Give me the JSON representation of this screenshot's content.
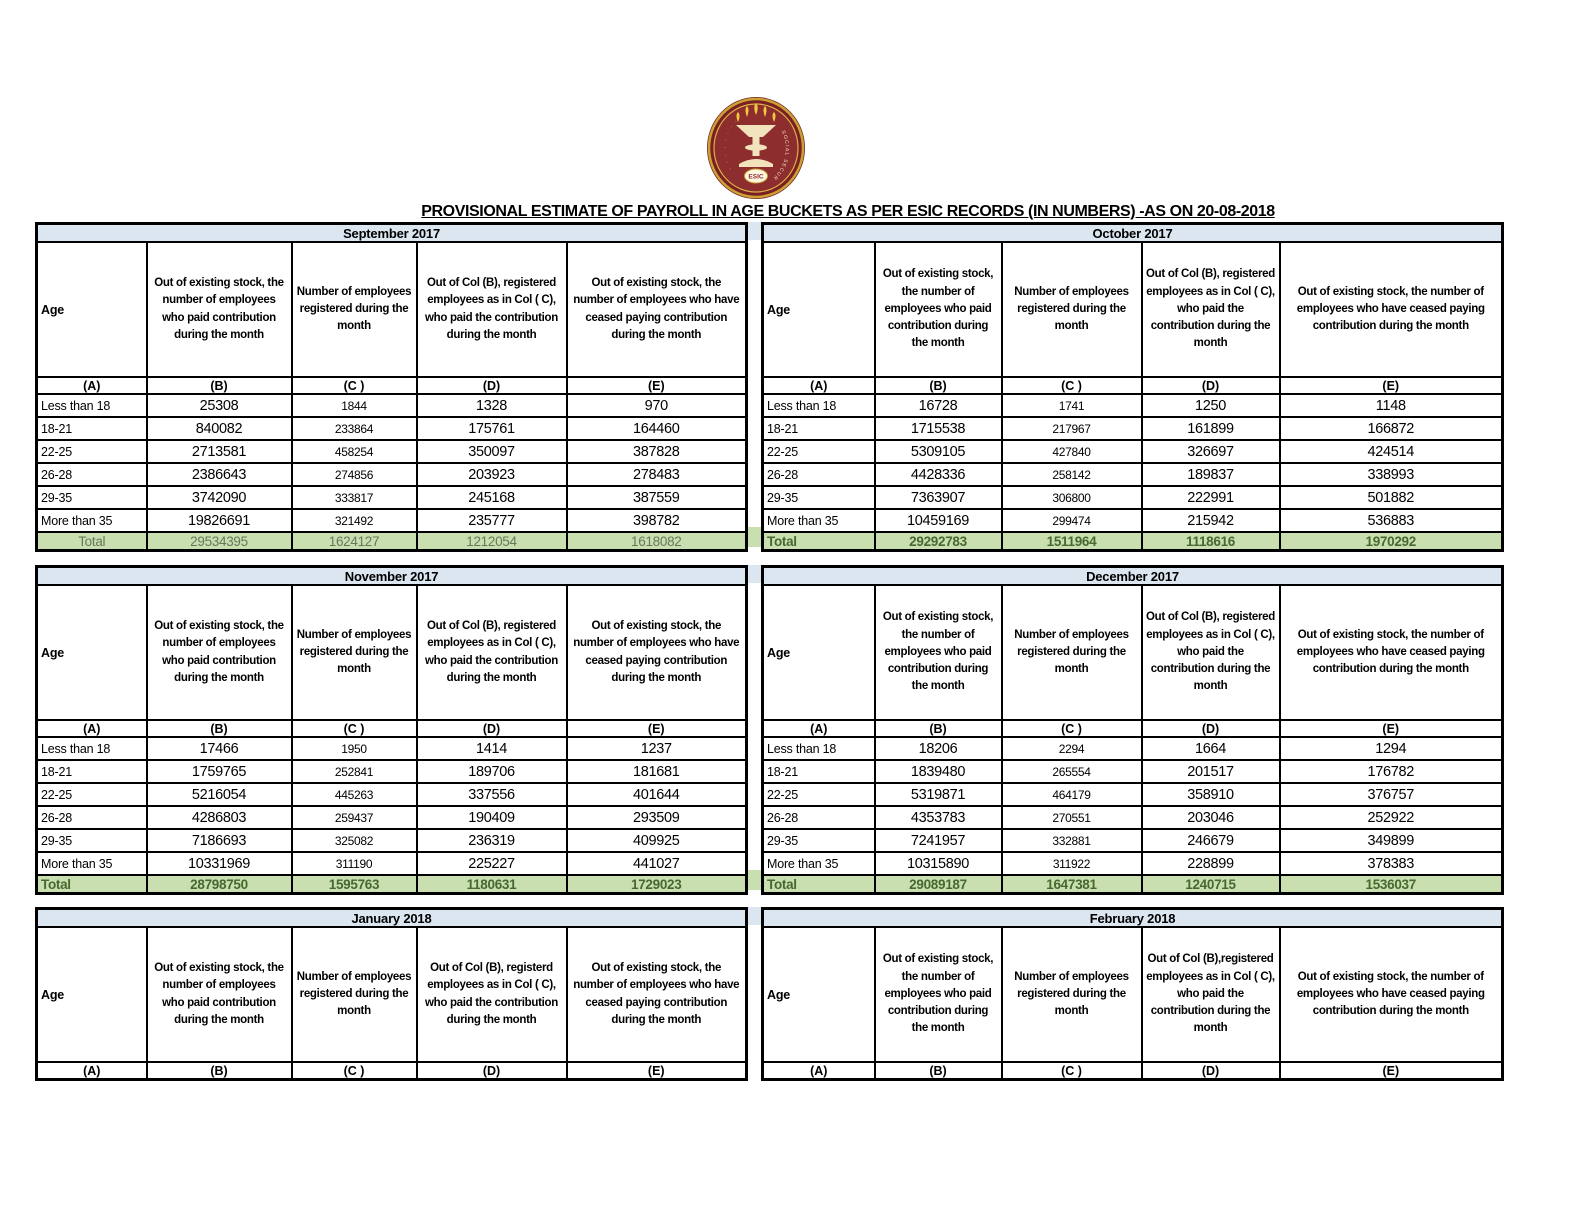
{
  "title": "PROVISIONAL ESTIMATE OF PAYROLL IN AGE BUCKETS AS PER ESIC RECORDS (IN NUMBERS) -AS ON 20-08-2018",
  "logo": {
    "name": "ESIC emblem",
    "center_text": "ESIC",
    "arc_text_right": "SOCIAL SECURITY",
    "colors": {
      "maroon": "#8e2d2e",
      "gold": "#c9a233",
      "cream": "#f2e3bd"
    }
  },
  "common": {
    "age_label": "Age",
    "letters": [
      "(A)",
      "(B)",
      "(C )",
      "(D)",
      "(E)"
    ],
    "total_label": "Total",
    "colors": {
      "month_header_bg": "#dce6f1",
      "total_row_bg": "#c9dfaf",
      "total_text_bold": "#47682e",
      "total_text_plain": "#66785c"
    }
  },
  "tables": [
    {
      "month": "September 2017",
      "headers": [
        "Out of existing stock, the number of employees who paid contribution during the month",
        "Number of employees registered during the month",
        "Out of Col (B), registered employees as in Col ( C), who paid the contribution during the month",
        "Out of existing stock, the number of  employees  who have ceased paying contribution during the month"
      ],
      "rows": [
        [
          "Less than 18",
          "25308",
          "1844",
          "1328",
          "970"
        ],
        [
          "18-21",
          "840082",
          "233864",
          "175761",
          "164460"
        ],
        [
          "22-25",
          "2713581",
          "458254",
          "350097",
          "387828"
        ],
        [
          "26-28",
          "2386643",
          "274856",
          "203923",
          "278483"
        ],
        [
          "29-35",
          "3742090",
          "333817",
          "245168",
          "387559"
        ],
        [
          "More than 35",
          "19826691",
          "321492",
          "235777",
          "398782"
        ]
      ],
      "total": [
        "29534395",
        "1624127",
        "1212054",
        "1618082"
      ],
      "total_align": "center"
    },
    {
      "month": "October 2017",
      "headers": [
        "Out of existing stock, the number of employees who paid contribution during the month",
        "Number of employees registered during the month",
        "Out of Col (B), registered employees as in Col ( C), who paid the contribution during the month",
        "Out of existing stock, the number of  employees  who have ceased paying contribution during the month"
      ],
      "rows": [
        [
          "Less than 18",
          "16728",
          "1741",
          "1250",
          "1148"
        ],
        [
          "18-21",
          "1715538",
          "217967",
          "161899",
          "166872"
        ],
        [
          "22-25",
          "5309105",
          "427840",
          "326697",
          "424514"
        ],
        [
          "26-28",
          "4428336",
          "258142",
          "189837",
          "338993"
        ],
        [
          "29-35",
          "7363907",
          "306800",
          "222991",
          "501882"
        ],
        [
          "More than 35",
          "10459169",
          "299474",
          "215942",
          "536883"
        ]
      ],
      "total": [
        "29292783",
        "1511964",
        "1118616",
        "1970292"
      ],
      "total_align": "left"
    },
    {
      "month": "November 2017",
      "headers": [
        "Out of existing stock, the number of employees who paid contribution during the month",
        "Number of employees registered during the month",
        "Out of Col (B), registered employees as in Col ( C), who paid the contribution during the month",
        "Out of existing stock, the number of  employees  who have ceased paying contribution during the month"
      ],
      "rows": [
        [
          "Less than 18",
          "17466",
          "1950",
          "1414",
          "1237"
        ],
        [
          "18-21",
          "1759765",
          "252841",
          "189706",
          "181681"
        ],
        [
          "22-25",
          "5216054",
          "445263",
          "337556",
          "401644"
        ],
        [
          "26-28",
          "4286803",
          "259437",
          "190409",
          "293509"
        ],
        [
          "29-35",
          "7186693",
          "325082",
          "236319",
          "409925"
        ],
        [
          "More than 35",
          "10331969",
          "311190",
          "225227",
          "441027"
        ]
      ],
      "total": [
        "28798750",
        "1595763",
        "1180631",
        "1729023"
      ],
      "total_align": "left"
    },
    {
      "month": "December 2017",
      "headers": [
        "Out of existing stock, the number of employees who paid contribution during the month",
        "Number of employees registered during the month",
        "Out of Col (B), registered employees as in Col ( C), who paid the contribution during the month",
        "Out of existing stock, the number of  employees  who have ceased paying contribution during the month"
      ],
      "rows": [
        [
          "Less than 18",
          "18206",
          "2294",
          "1664",
          "1294"
        ],
        [
          "18-21",
          "1839480",
          "265554",
          "201517",
          "176782"
        ],
        [
          "22-25",
          "5319871",
          "464179",
          "358910",
          "376757"
        ],
        [
          "26-28",
          "4353783",
          "270551",
          "203046",
          "252922"
        ],
        [
          "29-35",
          "7241957",
          "332881",
          "246679",
          "349899"
        ],
        [
          "More than 35",
          "10315890",
          "311922",
          "228899",
          "378383"
        ]
      ],
      "total": [
        "29089187",
        "1647381",
        "1240715",
        "1536037"
      ],
      "total_align": "left"
    },
    {
      "month": "January 2018",
      "headers": [
        "Out of existing stock, the number of employees who paid contribution during the month",
        "Number of employees registered during the month",
        "Out of Col (B), registerd employees as in Col ( C), who paid the contribution during the month",
        "Out of existing stock, the number of  employees  who have ceased paying contribution during the month"
      ],
      "rows": [],
      "total": null,
      "total_align": "left"
    },
    {
      "month": "February 2018",
      "headers": [
        "Out of existing stock, the number of employees who paid contribution during the month",
        "Number of employees registered during the month",
        "Out of Col (B),registered employees as in Col ( C), who paid the contribution during the month",
        "Out of existing stock, the number of  employees  who have ceased paying contribution during the month"
      ],
      "rows": [],
      "total": null,
      "total_align": "left"
    }
  ]
}
